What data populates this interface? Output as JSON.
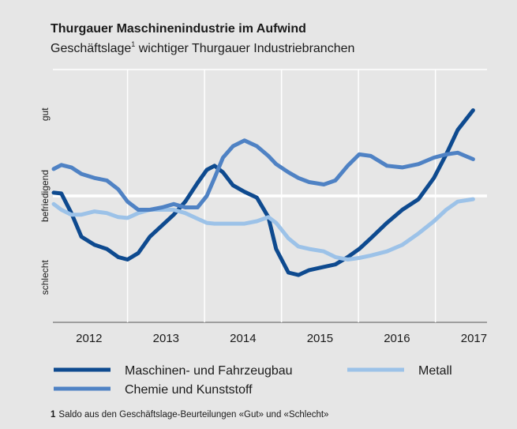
{
  "chart_data": {
    "type": "line",
    "title": "Thurgauer Maschinenindustrie im Aufwind",
    "subtitle": {
      "text": "Geschäftslage",
      "note": "1",
      "rest": " wichtiger Thurgauer Industriebranchen"
    },
    "footnote": {
      "marker": "1",
      "text": "Saldo aus den Geschäftslage-Beurteilungen «Gut» und «Schlecht»"
    },
    "x": [
      2011.54,
      2011.64,
      2011.77,
      2011.9,
      2012.07,
      2012.23,
      2012.38,
      2012.5,
      2012.64,
      2012.79,
      2012.95,
      2013.1,
      2013.25,
      2013.41,
      2013.53,
      2013.63,
      2013.74,
      2013.87,
      2014.02,
      2014.18,
      2014.33,
      2014.43,
      2014.59,
      2014.72,
      2014.86,
      2015.05,
      2015.2,
      2015.36,
      2015.51,
      2015.66,
      2015.87,
      2016.07,
      2016.28,
      2016.48,
      2016.64,
      2016.79,
      2016.99
    ],
    "series": [
      {
        "name": "Maschinen- und Fahrzeugbau",
        "color": "#0e4a8f",
        "values": [
          0.04,
          0.03,
          -0.21,
          -0.5,
          -0.6,
          -0.65,
          -0.75,
          -0.78,
          -0.7,
          -0.5,
          -0.36,
          -0.23,
          -0.07,
          0.16,
          0.32,
          0.37,
          0.29,
          0.13,
          0.05,
          -0.02,
          -0.26,
          -0.65,
          -0.94,
          -0.97,
          -0.91,
          -0.87,
          -0.84,
          -0.75,
          -0.65,
          -0.52,
          -0.33,
          -0.17,
          -0.04,
          0.22,
          0.51,
          0.81,
          1.05
        ]
      },
      {
        "name": "Metall",
        "color": "#9cc2e8",
        "values": [
          -0.1,
          -0.17,
          -0.23,
          -0.23,
          -0.19,
          -0.21,
          -0.26,
          -0.27,
          -0.21,
          -0.17,
          -0.17,
          -0.17,
          -0.21,
          -0.28,
          -0.33,
          -0.34,
          -0.34,
          -0.34,
          -0.34,
          -0.31,
          -0.26,
          -0.33,
          -0.52,
          -0.62,
          -0.65,
          -0.68,
          -0.75,
          -0.78,
          -0.76,
          -0.73,
          -0.68,
          -0.6,
          -0.46,
          -0.31,
          -0.17,
          -0.07,
          -0.04
        ]
      },
      {
        "name": "Chemie und Kunststoff",
        "color": "#4f82c4",
        "values": [
          0.33,
          0.38,
          0.35,
          0.27,
          0.22,
          0.19,
          0.08,
          -0.07,
          -0.17,
          -0.17,
          -0.14,
          -0.1,
          -0.14,
          -0.14,
          0.0,
          0.22,
          0.47,
          0.61,
          0.68,
          0.61,
          0.49,
          0.39,
          0.29,
          0.22,
          0.17,
          0.14,
          0.19,
          0.37,
          0.51,
          0.49,
          0.37,
          0.35,
          0.39,
          0.47,
          0.51,
          0.53,
          0.45
        ]
      }
    ],
    "xlim": [
      2011.53,
      2017.17
    ],
    "xticks": [
      2012,
      2013,
      2014,
      2015,
      2016,
      2017
    ],
    "ylim": [
      -1.55,
      1.55
    ],
    "yticks": [
      {
        "value": -1,
        "label": "schlecht"
      },
      {
        "value": 0,
        "label": "befriedigend"
      },
      {
        "value": 1,
        "label": "gut"
      }
    ],
    "hline": 0
  }
}
